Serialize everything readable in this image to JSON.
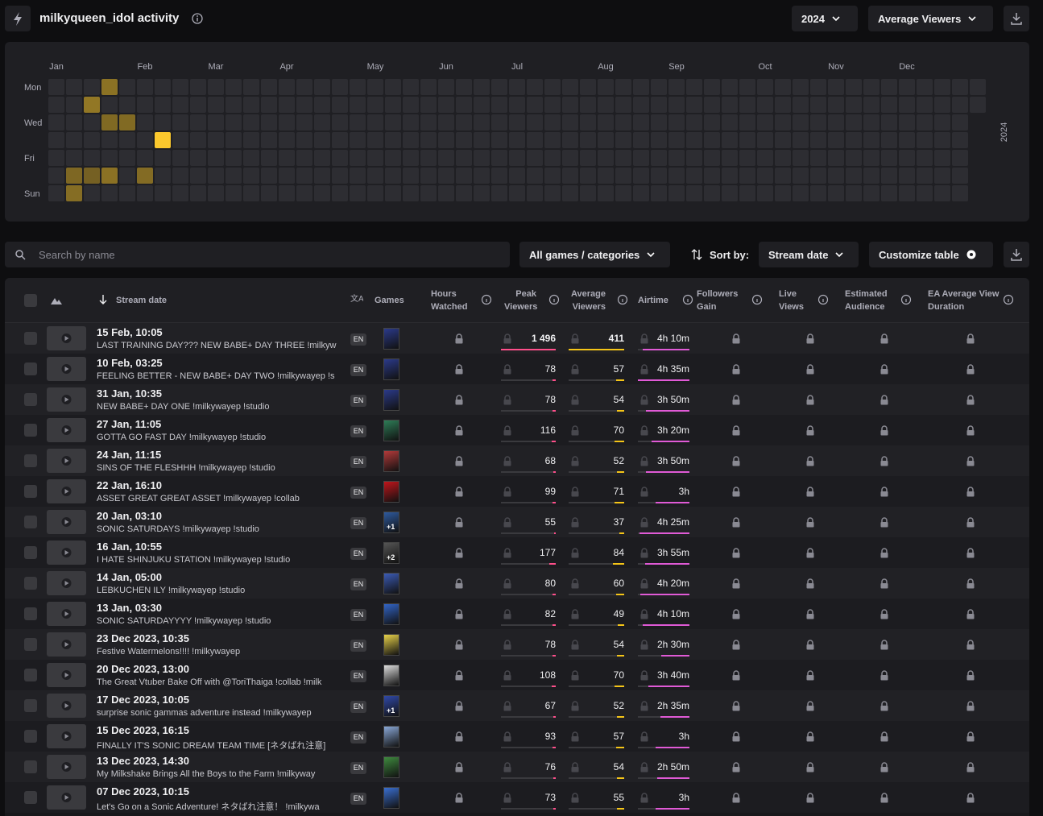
{
  "header": {
    "title": "milkyqueen_idol activity",
    "year": "2024",
    "metric": "Average Viewers"
  },
  "heatmap": {
    "months": [
      "Jan",
      "Feb",
      "Mar",
      "Apr",
      "May",
      "Jun",
      "Jul",
      "Aug",
      "Sep",
      "Oct",
      "Nov",
      "Dec"
    ],
    "weekdays": [
      "Mon",
      "Wed",
      "Fri",
      "Sun"
    ],
    "year_label": "2024",
    "cells": [
      {
        "date": "2024-02-15",
        "value": 411
      },
      {
        "date": "2024-02-10",
        "value": 57
      },
      {
        "date": "2024-01-31",
        "value": 54
      },
      {
        "date": "2024-01-27",
        "value": 70
      },
      {
        "date": "2024-01-24",
        "value": 52
      },
      {
        "date": "2024-01-22",
        "value": 71
      },
      {
        "date": "2024-01-20",
        "value": 37
      },
      {
        "date": "2024-01-16",
        "value": 84
      },
      {
        "date": "2024-01-14",
        "value": 60
      },
      {
        "date": "2024-01-13",
        "value": 49
      }
    ]
  },
  "toolbar": {
    "search_placeholder": "Search by name",
    "filter": "All games / categories",
    "sort_label": "Sort by:",
    "sort_value": "Stream date",
    "customize": "Customize table"
  },
  "table": {
    "columns": [
      "Stream date",
      "Games",
      "Hours Watched",
      "Peak Viewers",
      "Average Viewers",
      "Airtime",
      "Followers Gain",
      "Live Views",
      "Estimated Audience",
      "EA Average View Duration"
    ],
    "rows": [
      {
        "date": "15 Feb, 10:05",
        "title": "LAST TRAINING DAY??? NEW BABE+ DAY THREE !milkyw",
        "language": "EN",
        "peak": 1496,
        "peak_label": "1 496",
        "average": 411,
        "airtime": "4h 10m"
      },
      {
        "date": "10 Feb, 03:25",
        "title": "FEELING BETTER - NEW BABE+ DAY TWO !milkywayep !s",
        "language": "EN",
        "peak": 78,
        "average": 57,
        "airtime": "4h 35m"
      },
      {
        "date": "31 Jan, 10:35",
        "title": "NEW BABE+ DAY ONE !milkywayep !studio",
        "language": "EN",
        "peak": 78,
        "average": 54,
        "airtime": "3h 50m"
      },
      {
        "date": "27 Jan, 11:05",
        "title": "GOTTA GO FAST DAY !milkywayep !studio",
        "language": "EN",
        "peak": 116,
        "average": 70,
        "airtime": "3h 20m"
      },
      {
        "date": "24 Jan, 11:15",
        "title": "SINS OF THE FLESHHH !milkywayep !studio",
        "language": "EN",
        "peak": 68,
        "average": 52,
        "airtime": "3h 50m"
      },
      {
        "date": "22 Jan, 16:10",
        "title": "ASSET GREAT GREAT ASSET !milkywayep !collab",
        "language": "EN",
        "peak": 99,
        "average": 71,
        "airtime": "3h"
      },
      {
        "date": "20 Jan, 03:10",
        "title": "SONIC SATURDAYS !milkywayep !studio",
        "language": "EN",
        "games_extra": "+1",
        "peak": 55,
        "average": 37,
        "airtime": "4h 25m"
      },
      {
        "date": "16 Jan, 10:55",
        "title": "I HATE SHINJUKU STATION !milkywayep !studio",
        "language": "EN",
        "games_extra": "+2",
        "peak": 177,
        "average": 84,
        "airtime": "3h 55m"
      },
      {
        "date": "14 Jan, 05:00",
        "title": "LEBKUCHEN ILY !milkywayep !studio",
        "language": "EN",
        "peak": 80,
        "average": 60,
        "airtime": "4h 20m"
      },
      {
        "date": "13 Jan, 03:30",
        "title": "SONIC SATURDAYYYY !milkywayep !studio",
        "language": "EN",
        "peak": 82,
        "average": 49,
        "airtime": "4h 10m"
      },
      {
        "date": "23 Dec 2023, 10:35",
        "title": "Festive Watermelons!!!! !milkywayep",
        "language": "EN",
        "peak": 78,
        "average": 54,
        "airtime": "2h 30m"
      },
      {
        "date": "20 Dec 2023, 13:00",
        "title": "The Great Vtuber Bake Off with @ToriThaiga !collab !milk",
        "language": "EN",
        "peak": 108,
        "average": 70,
        "airtime": "3h 40m"
      },
      {
        "date": "17 Dec 2023, 10:05",
        "title": "surprise sonic gammas adventure instead !milkywayep",
        "language": "EN",
        "games_extra": "+1",
        "peak": 67,
        "average": 52,
        "airtime": "2h 35m"
      },
      {
        "date": "15 Dec 2023, 16:15",
        "title": "FINALLY IT'S SONIC DREAM TEAM TIME [ネタばれ注意]",
        "language": "EN",
        "peak": 93,
        "average": 57,
        "airtime": "3h"
      },
      {
        "date": "13 Dec 2023, 14:30",
        "title": "My Milkshake Brings All the Boys to the Farm !milkyway",
        "language": "EN",
        "peak": 76,
        "average": 54,
        "airtime": "2h 50m"
      },
      {
        "date": "07 Dec 2023, 10:15",
        "title": "Let's Go on a Sonic Adventure! ネタばれ注意！ !milkywa",
        "language": "EN",
        "peak": 73,
        "average": 55,
        "airtime": "3h"
      }
    ]
  }
}
